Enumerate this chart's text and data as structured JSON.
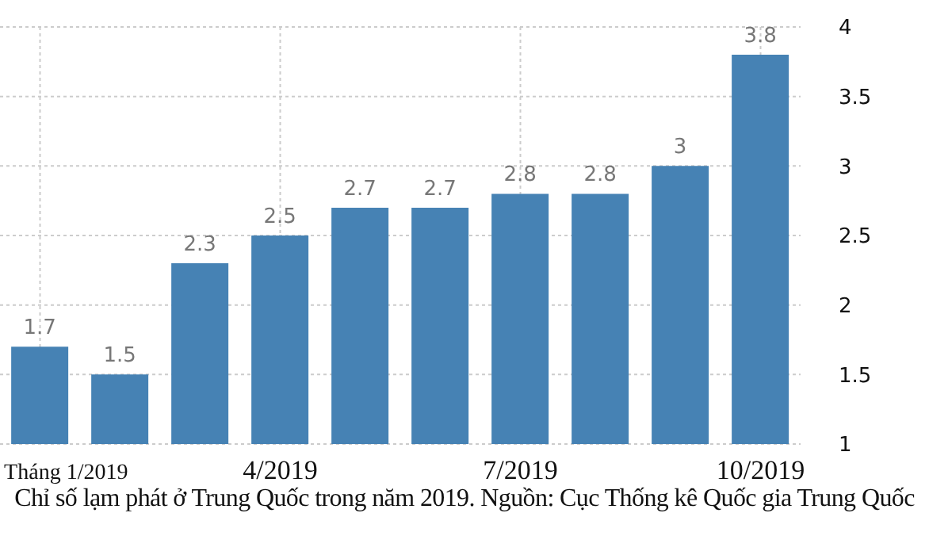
{
  "chart_data": {
    "type": "bar",
    "categories": [
      "Tháng 1/2019",
      null,
      null,
      "4/2019",
      null,
      null,
      "7/2019",
      null,
      null,
      "10/2019"
    ],
    "values": [
      1.7,
      1.5,
      2.3,
      2.5,
      2.7,
      2.7,
      2.8,
      2.8,
      3,
      3.8
    ],
    "color": "#4682b4",
    "ylim": [
      1,
      4
    ],
    "yticks": [
      1,
      1.5,
      2,
      2.5,
      3,
      3.5,
      4
    ],
    "grid": true,
    "data_labels": true,
    "annotations": [
      "Chỉ số lạm phát ở Trung Quốc trong năm 2019. Nguồn: Cục Thống kê Quốc gia Trung Quốc"
    ]
  }
}
